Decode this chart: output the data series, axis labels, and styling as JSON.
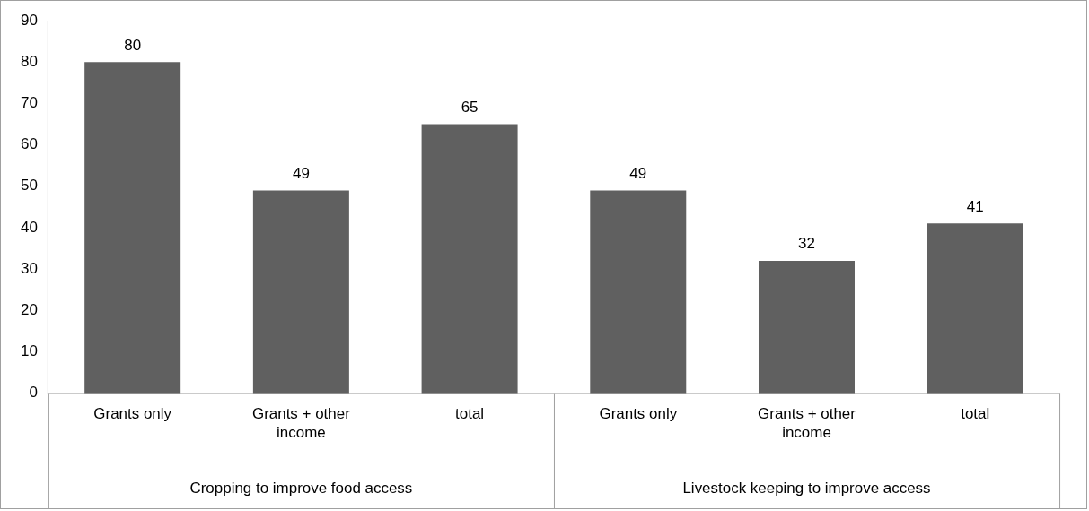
{
  "chart_data": {
    "type": "bar",
    "categories": [
      "Grants only",
      "Grants + other income",
      "total",
      "Grants only",
      "Grants + other income",
      "total"
    ],
    "values": [
      80,
      49,
      65,
      49,
      32,
      41
    ],
    "color": "#606060",
    "ylim": [
      0,
      90
    ],
    "yticks": [
      0,
      10,
      20,
      30,
      40,
      50,
      60,
      70,
      80,
      90
    ],
    "grid": false,
    "legend": false,
    "data_labels": true,
    "annotations": [
      "Cropping to improve food access",
      "Livestock keeping to improve access"
    ]
  }
}
